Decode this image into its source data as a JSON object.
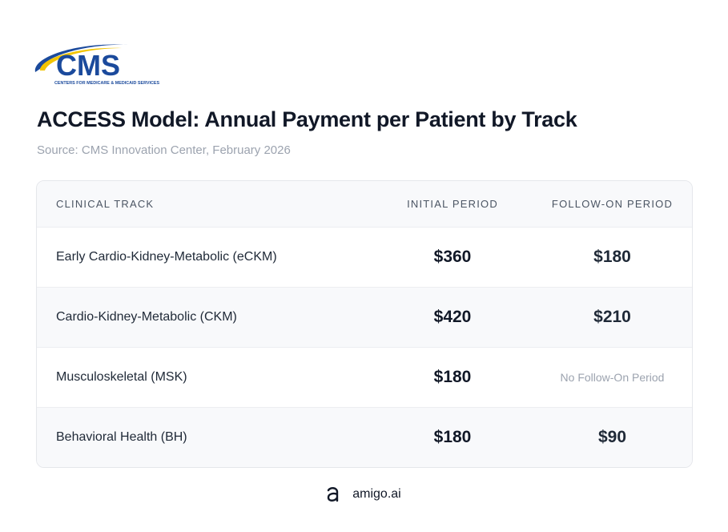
{
  "header": {
    "logo": {
      "mark": "CMS",
      "tagline": "CENTERS FOR MEDICARE & MEDICAID SERVICES"
    },
    "title": "ACCESS Model: Annual Payment per Patient by Track",
    "source": "Source: CMS Innovation Center, February 2026"
  },
  "table": {
    "columns": [
      "CLINICAL TRACK",
      "INITIAL PERIOD",
      "FOLLOW-ON PERIOD"
    ],
    "rows": [
      [
        "Early Cardio-Kidney-Metabolic (eCKM)",
        "$360",
        "$180"
      ],
      [
        "Cardio-Kidney-Metabolic (CKM)",
        "$420",
        "$210"
      ],
      [
        "Musculoskeletal (MSK)",
        "$180",
        "No Follow-On Period"
      ],
      [
        "Behavioral Health (BH)",
        "$180",
        "$90"
      ]
    ]
  },
  "footer": {
    "brand": "amigo.ai"
  }
}
